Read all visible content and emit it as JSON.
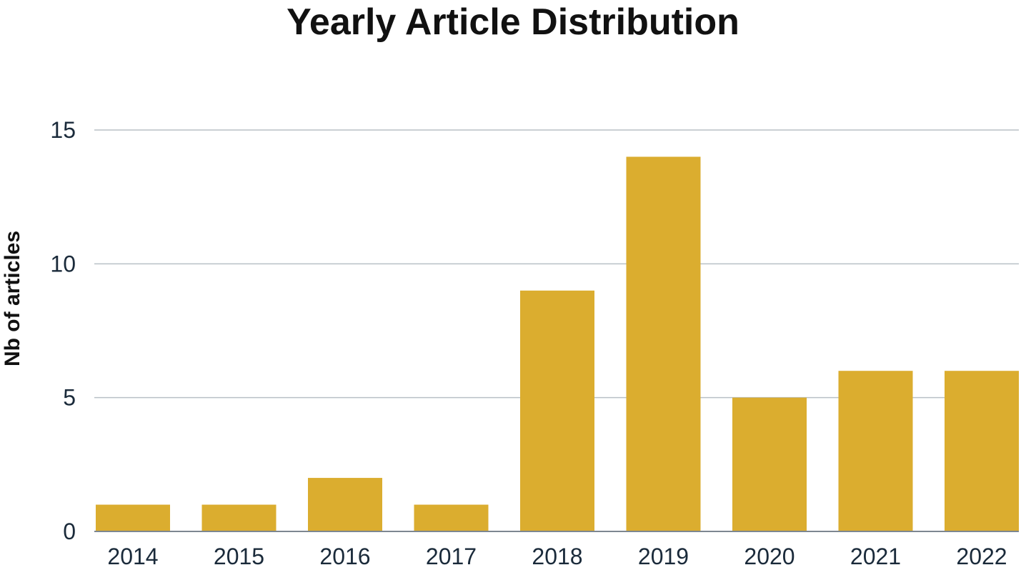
{
  "chart_data": {
    "type": "bar",
    "title": "Yearly Article Distribution",
    "xlabel": "",
    "ylabel": "Nb of articles",
    "categories": [
      "2014",
      "2015",
      "2016",
      "2017",
      "2018",
      "2019",
      "2020",
      "2021",
      "2022"
    ],
    "values": [
      1,
      1,
      2,
      1,
      9,
      14,
      5,
      6,
      6
    ],
    "ylim": [
      0,
      15
    ],
    "yticks": [
      "0",
      "5",
      "10",
      "15"
    ],
    "grid": true,
    "legend": "none",
    "colors": {
      "bar": "#dbad2f",
      "grid": "#b9c0c6",
      "axis": "#7d8791",
      "text": "#1a2a3a"
    }
  }
}
